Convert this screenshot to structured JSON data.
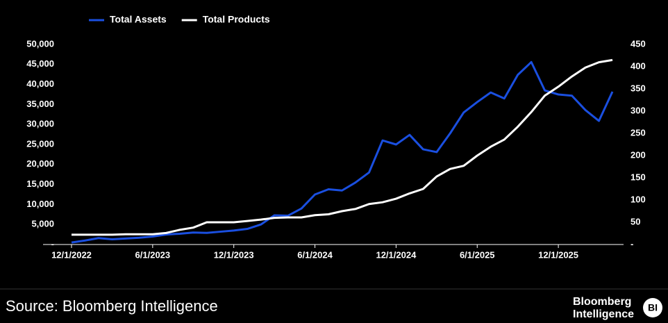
{
  "chart_data": {
    "type": "line",
    "x": [
      "12/1/2022",
      "1/1/2023",
      "2/1/2023",
      "3/1/2023",
      "4/1/2023",
      "5/1/2023",
      "6/1/2023",
      "7/1/2023",
      "8/1/2023",
      "9/1/2023",
      "10/1/2023",
      "11/1/2023",
      "12/1/2023",
      "1/1/2024",
      "2/1/2024",
      "3/1/2024",
      "4/1/2024",
      "5/1/2024",
      "6/1/2024",
      "7/1/2024",
      "8/1/2024",
      "9/1/2024",
      "10/1/2024",
      "11/1/2024",
      "12/1/2024",
      "1/1/2025",
      "2/1/2025",
      "3/1/2025",
      "4/1/2025",
      "5/1/2025",
      "6/1/2025",
      "7/1/2025",
      "8/1/2025",
      "9/1/2025",
      "10/1/2025",
      "11/1/2025",
      "12/1/2025",
      "1/1/2026",
      "2/1/2026",
      "3/1/2026",
      "4/1/2026"
    ],
    "xticks": [
      "12/1/2022",
      "6/1/2023",
      "12/1/2023",
      "6/1/2024",
      "12/1/2024",
      "6/1/2025",
      "12/1/2025"
    ],
    "series": [
      {
        "name": "Total Assets",
        "color": "#1a4fe0",
        "values": [
          500,
          1000,
          1600,
          1300,
          1500,
          1700,
          2000,
          2500,
          2700,
          3000,
          2900,
          3200,
          3500,
          3900,
          5000,
          7300,
          7200,
          9000,
          12500,
          13800,
          13500,
          15500,
          18000,
          26000,
          25000,
          27400,
          23800,
          23100,
          27800,
          33000,
          35600,
          38000,
          36500,
          42400,
          45600,
          38500,
          37500,
          37200,
          33600,
          30900,
          38200
        ]
      },
      {
        "name": "Total Products",
        "color": "#ffffff",
        "axis": "y2",
        "values": [
          22,
          22,
          22,
          22,
          23,
          23,
          23,
          26,
          33,
          38,
          50,
          50,
          50,
          53,
          56,
          60,
          61,
          61,
          66,
          68,
          75,
          80,
          91,
          95,
          103,
          115,
          125,
          153,
          170,
          177,
          200,
          220,
          236,
          265,
          298,
          335,
          355,
          378,
          398,
          410,
          415
        ]
      }
    ],
    "ylim": [
      0,
      50000
    ],
    "yticks": [
      {
        "value": 0,
        "label": "-"
      },
      {
        "value": 5000,
        "label": "5,000"
      },
      {
        "value": 10000,
        "label": "10,000"
      },
      {
        "value": 15000,
        "label": "15,000"
      },
      {
        "value": 20000,
        "label": "20,000"
      },
      {
        "value": 25000,
        "label": "25,000"
      },
      {
        "value": 30000,
        "label": "30,000"
      },
      {
        "value": 35000,
        "label": "35,000"
      },
      {
        "value": 40000,
        "label": "40,000"
      },
      {
        "value": 45000,
        "label": "45,000"
      },
      {
        "value": 50000,
        "label": "50,000"
      }
    ],
    "y2lim": [
      0,
      450
    ],
    "y2ticks": [
      {
        "value": 0,
        "label": "-"
      },
      50,
      100,
      150,
      200,
      250,
      300,
      350,
      400,
      450
    ],
    "legend": "top",
    "grid": false
  },
  "footer": {
    "source": "Source: Bloomberg Intelligence",
    "logo_line1": "Bloomberg",
    "logo_line2": "Intelligence",
    "badge": "BI"
  }
}
